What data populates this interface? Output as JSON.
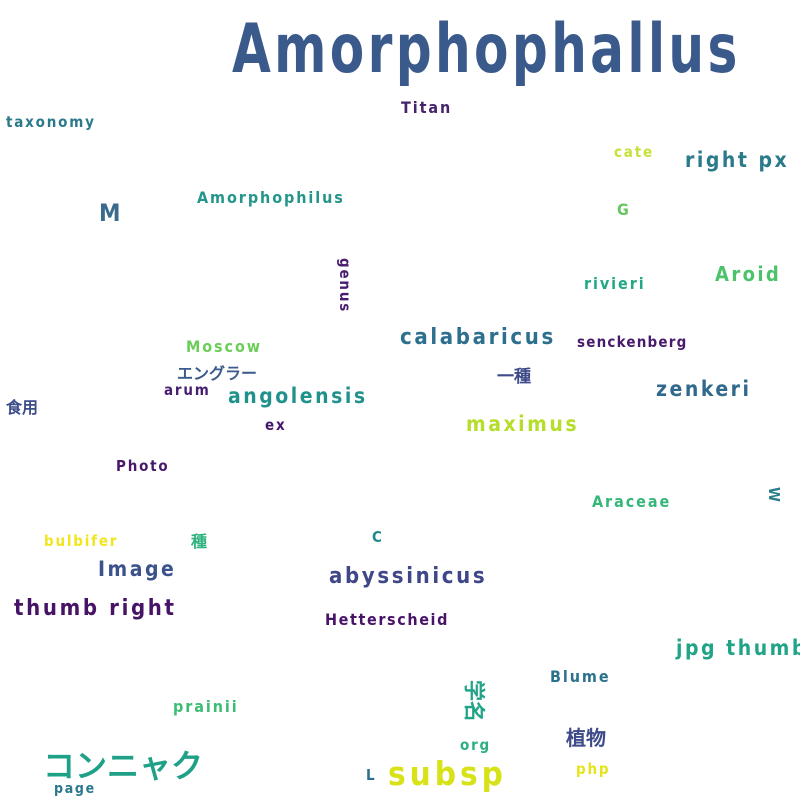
{
  "words": [
    {
      "id": "amorphophallus",
      "text": "Amorphophallus",
      "color": "#3b5a8c"
    },
    {
      "id": "titan",
      "text": "Titan",
      "color": "#45246b"
    },
    {
      "id": "taxonomy",
      "text": "taxonomy",
      "color": "#2a7a8a"
    },
    {
      "id": "cate",
      "text": "cate",
      "color": "#c8e03a"
    },
    {
      "id": "right-px",
      "text": "right px",
      "color": "#2a7a8a"
    },
    {
      "id": "m",
      "text": "M",
      "color": "#3a6a8c"
    },
    {
      "id": "amorphophilus",
      "text": "Amorphophilus",
      "color": "#23958a"
    },
    {
      "id": "g",
      "text": "G",
      "color": "#67c462"
    },
    {
      "id": "genus",
      "text": "genus",
      "color": "#481d6f"
    },
    {
      "id": "rivieri",
      "text": "rivieri",
      "color": "#22a884"
    },
    {
      "id": "aroid",
      "text": "Aroid",
      "color": "#4cc36a"
    },
    {
      "id": "calabaricus",
      "text": "calabaricus",
      "color": "#2d6f8e"
    },
    {
      "id": "senckenberg",
      "text": "senckenberg",
      "color": "#481a6c"
    },
    {
      "id": "moscow",
      "text": "Moscow",
      "color": "#6cce59"
    },
    {
      "id": "enguraa",
      "text": "エングラー",
      "color": "#3b5a8c"
    },
    {
      "id": "isshu",
      "text": "一種",
      "color": "#3e4a89"
    },
    {
      "id": "arum",
      "text": "arum",
      "color": "#481f70"
    },
    {
      "id": "angolensis",
      "text": "angolensis",
      "color": "#21918c"
    },
    {
      "id": "zenkeri",
      "text": "zenkeri",
      "color": "#31688e"
    },
    {
      "id": "shokuyou",
      "text": "食用",
      "color": "#3b4d8a"
    },
    {
      "id": "maximus",
      "text": "maximus",
      "color": "#b5de2b"
    },
    {
      "id": "ex",
      "text": "ex",
      "color": "#46186b"
    },
    {
      "id": "photo",
      "text": "Photo",
      "color": "#48176a"
    },
    {
      "id": "w",
      "text": "W",
      "color": "#2a7f8e"
    },
    {
      "id": "araceae",
      "text": "Araceae",
      "color": "#35b779"
    },
    {
      "id": "bulbifer",
      "text": "bulbifer",
      "color": "#f1e51d"
    },
    {
      "id": "shu",
      "text": "種",
      "color": "#2db27d"
    },
    {
      "id": "c",
      "text": "C",
      "color": "#23888e"
    },
    {
      "id": "image",
      "text": "Image",
      "color": "#3b528b"
    },
    {
      "id": "abyssinicus",
      "text": "abyssinicus",
      "color": "#3f4788"
    },
    {
      "id": "thumb-right",
      "text": "thumb right",
      "color": "#471366"
    },
    {
      "id": "hetterscheid",
      "text": "Hetterscheid",
      "color": "#481467"
    },
    {
      "id": "jpg-thumb",
      "text": "jpg thumb",
      "color": "#20a386"
    },
    {
      "id": "blume",
      "text": "Blume",
      "color": "#2c728e"
    },
    {
      "id": "prainii",
      "text": "prainii",
      "color": "#3dbc74"
    },
    {
      "id": "gakumei",
      "text": "学名",
      "color": "#20a386"
    },
    {
      "id": "shokubutsu",
      "text": "植物",
      "color": "#3e4a89"
    },
    {
      "id": "org",
      "text": "org",
      "color": "#2ab07f"
    },
    {
      "id": "konnyaku",
      "text": "コンニャク",
      "color": "#1fa188"
    },
    {
      "id": "l",
      "text": "L",
      "color": "#2e6e8e"
    },
    {
      "id": "subsp",
      "text": "subsp",
      "color": "#d8e219"
    },
    {
      "id": "php",
      "text": "php",
      "color": "#e5e419"
    },
    {
      "id": "page",
      "text": "page",
      "color": "#2a788e"
    }
  ]
}
